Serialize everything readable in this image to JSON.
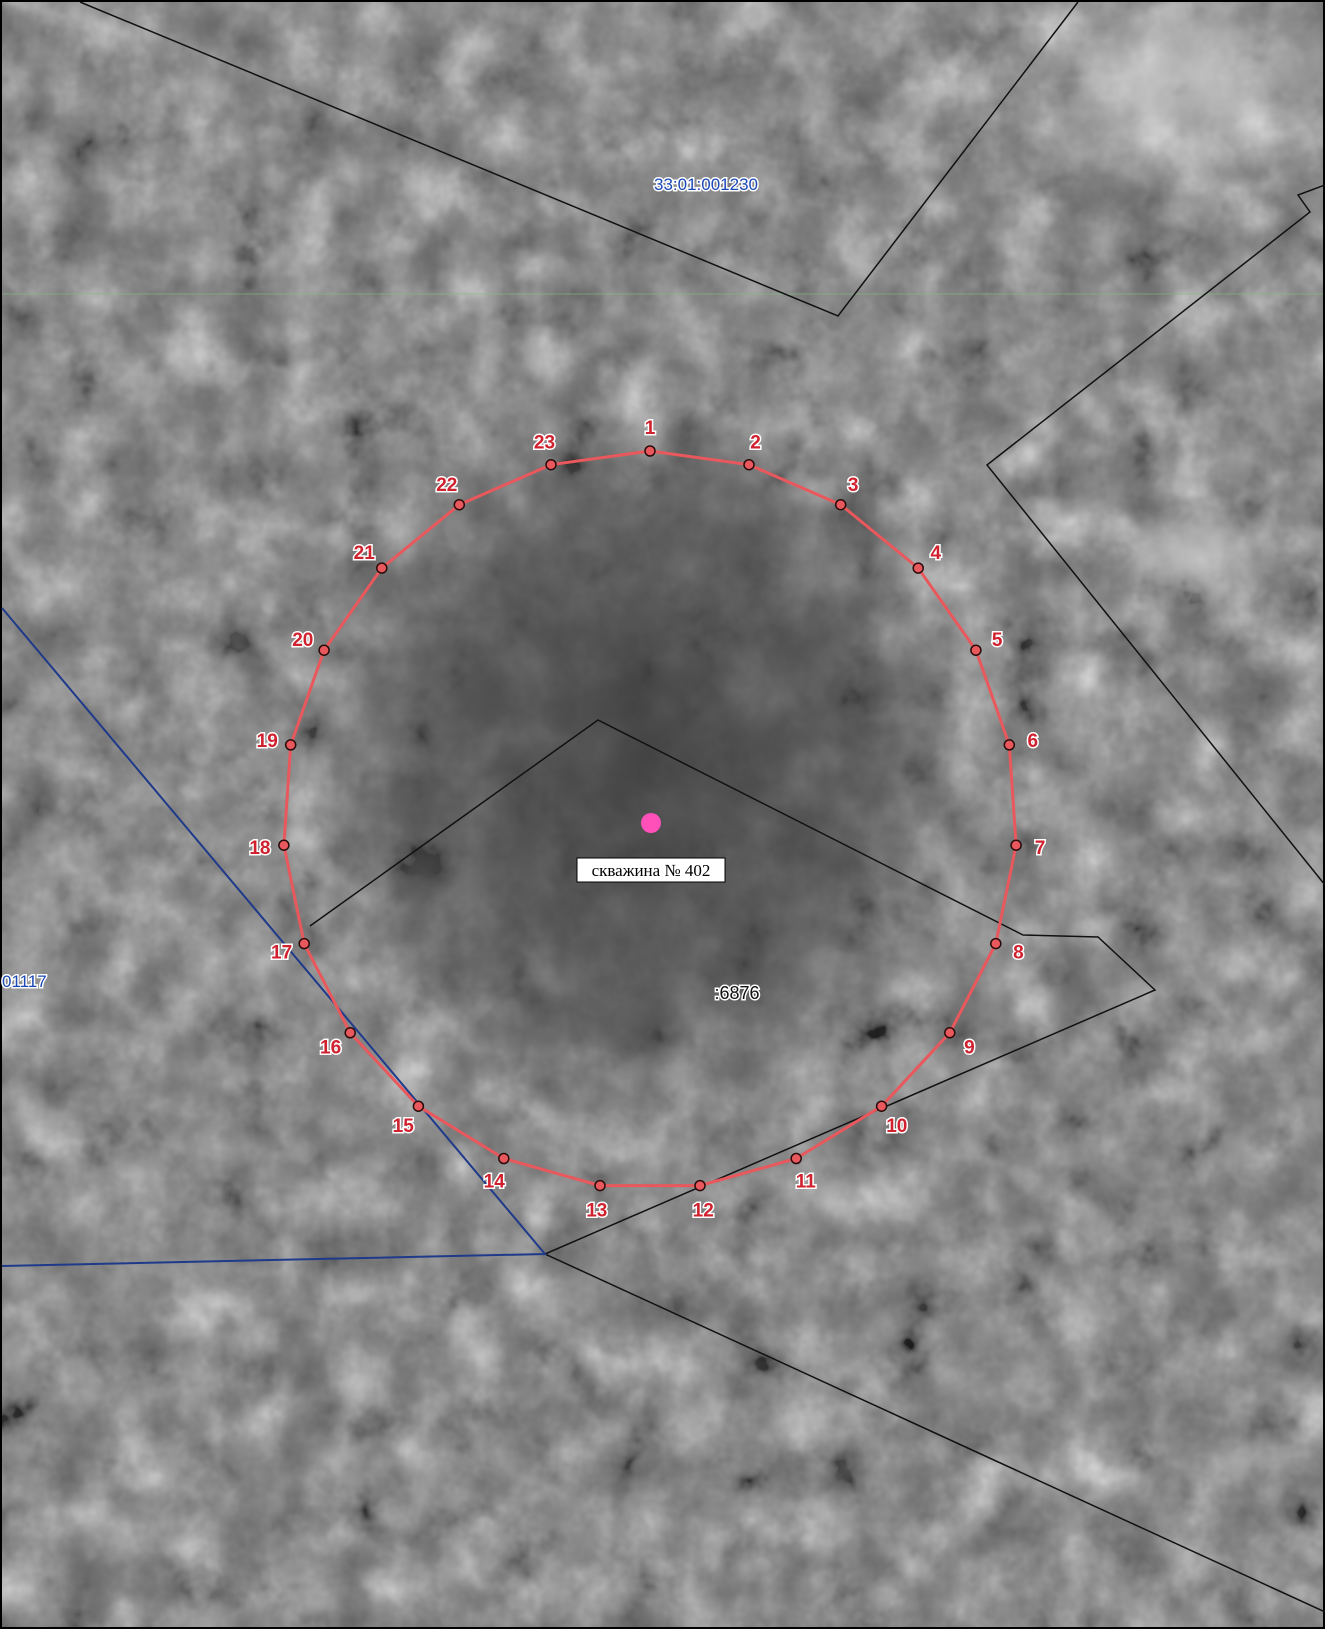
{
  "map": {
    "cadastral_block_north": "33:01:001230",
    "cadastral_block_west": "01117",
    "parcel_number": ":6876",
    "well_label": "скважина № 402",
    "well_point_color": "#ff4fb8",
    "zone_outline_color": "#e8585c",
    "parcel_boundary_color": "#111111",
    "block_boundary_color": "#1f3a8a",
    "zone_points": [
      "1",
      "2",
      "3",
      "4",
      "5",
      "6",
      "7",
      "8",
      "9",
      "10",
      "11",
      "12",
      "13",
      "14",
      "15",
      "16",
      "17",
      "18",
      "19",
      "20",
      "21",
      "22",
      "23"
    ]
  }
}
